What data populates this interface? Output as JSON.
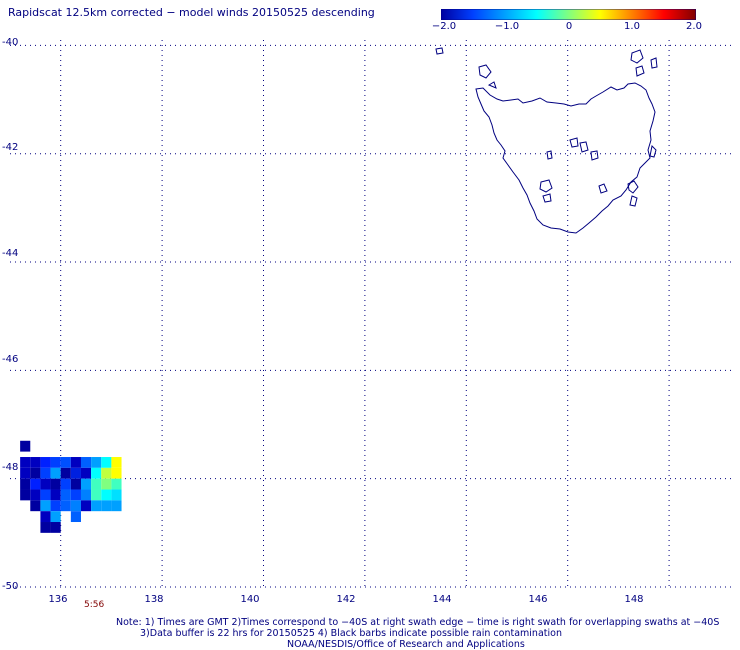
{
  "title": "Rapidscat 12.5km corrected − model winds 20150525 descending",
  "colorbar": {
    "colors": [
      "#0000a0",
      "#0040ff",
      "#00a0ff",
      "#00ffff",
      "#80ff80",
      "#ffff00",
      "#ff8000",
      "#ff0000",
      "#800000"
    ],
    "ticks": [
      "−2.0",
      "−1.0",
      "0",
      "1.0",
      "2.0"
    ]
  },
  "axes": {
    "lat_labels": [
      "-40",
      "-42",
      "-44",
      "-46",
      "-48",
      "-50"
    ],
    "lon_labels": [
      "136",
      "138",
      "140",
      "142",
      "144",
      "146",
      "148"
    ],
    "grid": "dotted",
    "lon_range": [
      135.0,
      149.3
    ],
    "lat_range": [
      -50.0,
      -39.9
    ]
  },
  "swath_time": "5:56",
  "notes": {
    "line1": "Note: 1) Times are GMT 2)Times correspond to −40S at right swath edge − time is right swath for overlapping swaths at −40S",
    "line2": "3)Data buffer is 22 hrs for 20150525 4) Black barbs indicate possible rain contamination",
    "line3": "NOAA/NESDIS/Office of Research and Applications"
  },
  "wind_cells": [
    {
      "lon": 135.2,
      "lat": -47.3,
      "color": "#0000a0"
    },
    {
      "lon": 135.2,
      "lat": -47.6,
      "color": "#0000c0"
    },
    {
      "lon": 135.4,
      "lat": -47.6,
      "color": "#0000c0"
    },
    {
      "lon": 135.6,
      "lat": -47.6,
      "color": "#0020ff"
    },
    {
      "lon": 135.8,
      "lat": -47.6,
      "color": "#0040ff"
    },
    {
      "lon": 136.0,
      "lat": -47.6,
      "color": "#0050ff"
    },
    {
      "lon": 136.2,
      "lat": -47.6,
      "color": "#0000c0"
    },
    {
      "lon": 136.4,
      "lat": -47.6,
      "color": "#0060ff"
    },
    {
      "lon": 136.6,
      "lat": -47.6,
      "color": "#00a0ff"
    },
    {
      "lon": 136.8,
      "lat": -47.6,
      "color": "#00ffff"
    },
    {
      "lon": 137.0,
      "lat": -47.6,
      "color": "#ffff00"
    },
    {
      "lon": 135.2,
      "lat": -47.8,
      "color": "#0000c0"
    },
    {
      "lon": 135.4,
      "lat": -47.8,
      "color": "#0000a0"
    },
    {
      "lon": 135.6,
      "lat": -47.8,
      "color": "#0040ff"
    },
    {
      "lon": 135.8,
      "lat": -47.8,
      "color": "#00a0ff"
    },
    {
      "lon": 136.0,
      "lat": -47.8,
      "color": "#0000a0"
    },
    {
      "lon": 136.2,
      "lat": -47.8,
      "color": "#0020e0"
    },
    {
      "lon": 136.4,
      "lat": -47.8,
      "color": "#0000c0"
    },
    {
      "lon": 136.6,
      "lat": -47.8,
      "color": "#00ffff"
    },
    {
      "lon": 136.8,
      "lat": -47.8,
      "color": "#c0ff40"
    },
    {
      "lon": 137.0,
      "lat": -47.8,
      "color": "#ffff00"
    },
    {
      "lon": 135.2,
      "lat": -48.0,
      "color": "#0000a0"
    },
    {
      "lon": 135.4,
      "lat": -48.0,
      "color": "#0020ff"
    },
    {
      "lon": 135.6,
      "lat": -48.0,
      "color": "#0000c0"
    },
    {
      "lon": 135.8,
      "lat": -48.0,
      "color": "#0000a0"
    },
    {
      "lon": 136.0,
      "lat": -48.0,
      "color": "#0040ff"
    },
    {
      "lon": 136.2,
      "lat": -48.0,
      "color": "#0000a0"
    },
    {
      "lon": 136.4,
      "lat": -48.0,
      "color": "#00a0ff"
    },
    {
      "lon": 136.6,
      "lat": -48.0,
      "color": "#40ffc0"
    },
    {
      "lon": 136.8,
      "lat": -48.0,
      "color": "#80ff80"
    },
    {
      "lon": 137.0,
      "lat": -48.0,
      "color": "#40ffc0"
    },
    {
      "lon": 135.2,
      "lat": -48.2,
      "color": "#0000a0"
    },
    {
      "lon": 135.4,
      "lat": -48.2,
      "color": "#0000c0"
    },
    {
      "lon": 135.6,
      "lat": -48.2,
      "color": "#0040ff"
    },
    {
      "lon": 135.8,
      "lat": -48.2,
      "color": "#0000c0"
    },
    {
      "lon": 136.0,
      "lat": -48.2,
      "color": "#0060ff"
    },
    {
      "lon": 136.2,
      "lat": -48.2,
      "color": "#0040ff"
    },
    {
      "lon": 136.4,
      "lat": -48.2,
      "color": "#0080ff"
    },
    {
      "lon": 136.6,
      "lat": -48.2,
      "color": "#40ffc0"
    },
    {
      "lon": 136.8,
      "lat": -48.2,
      "color": "#00ffff"
    },
    {
      "lon": 137.0,
      "lat": -48.2,
      "color": "#00e0ff"
    },
    {
      "lon": 135.4,
      "lat": -48.4,
      "color": "#0000a0"
    },
    {
      "lon": 135.6,
      "lat": -48.4,
      "color": "#00a0ff"
    },
    {
      "lon": 135.8,
      "lat": -48.4,
      "color": "#0040ff"
    },
    {
      "lon": 136.0,
      "lat": -48.4,
      "color": "#0060ff"
    },
    {
      "lon": 136.2,
      "lat": -48.4,
      "color": "#0080ff"
    },
    {
      "lon": 136.4,
      "lat": -48.4,
      "color": "#0000c0"
    },
    {
      "lon": 136.6,
      "lat": -48.4,
      "color": "#00a0ff"
    },
    {
      "lon": 136.8,
      "lat": -48.4,
      "color": "#00a0ff"
    },
    {
      "lon": 137.0,
      "lat": -48.4,
      "color": "#00a0ff"
    },
    {
      "lon": 135.6,
      "lat": -48.6,
      "color": "#0000c0"
    },
    {
      "lon": 135.8,
      "lat": -48.6,
      "color": "#00a0ff"
    },
    {
      "lon": 136.2,
      "lat": -48.6,
      "color": "#0060ff"
    },
    {
      "lon": 135.6,
      "lat": -48.8,
      "color": "#0000a0"
    },
    {
      "lon": 135.8,
      "lat": -48.8,
      "color": "#0000a0"
    }
  ]
}
